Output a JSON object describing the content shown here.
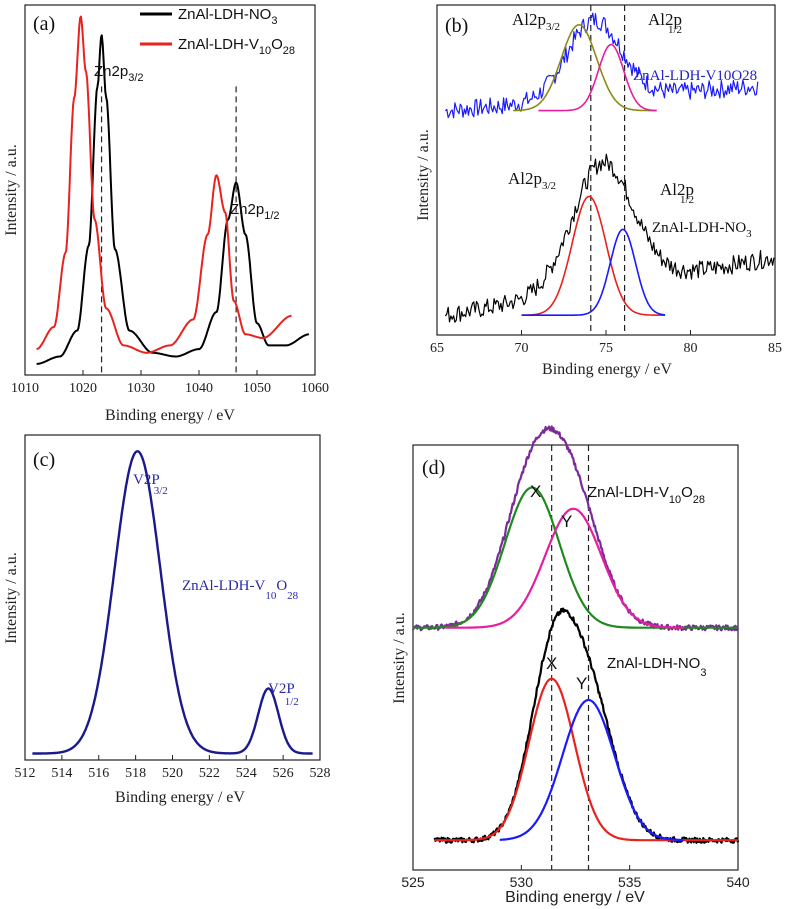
{
  "chart_data": [
    {
      "id": "a",
      "type": "line",
      "panel_label": "(a)",
      "xlabel": "Binding energy / eV",
      "ylabel": "Intensity / a.u.",
      "xlim": [
        1010,
        1060
      ],
      "ylim": [
        0,
        1
      ],
      "xticks": [
        1010,
        1020,
        1030,
        1040,
        1050,
        1060
      ],
      "legend": [
        {
          "name": "ZnAl-LDH-NO3",
          "main": "ZnAl-LDH-NO",
          "sub": "3",
          "color": "#000000"
        },
        {
          "name": "ZnAl-LDH-V10O28",
          "p1": "ZnAl-LDH-V",
          "s1": "10",
          "p2": "O",
          "s2": "28",
          "color": "#e8231f"
        }
      ],
      "peaks": [
        {
          "label_main": "Zn2p",
          "label_sub": "3/2",
          "x": 1023.2
        },
        {
          "label_main": "Zn2p",
          "label_sub": "1/2",
          "x": 1046.4
        }
      ],
      "series": [
        {
          "name": "ZnAl-LDH-NO3",
          "color": "#000000",
          "x": [
            1012,
            1016,
            1019,
            1021,
            1022.5,
            1023.2,
            1024,
            1025.5,
            1028,
            1032,
            1036,
            1040,
            1043,
            1045,
            1046.4,
            1048,
            1050,
            1052,
            1055,
            1059
          ],
          "y": [
            0.03,
            0.05,
            0.12,
            0.35,
            0.78,
            0.92,
            0.75,
            0.34,
            0.12,
            0.06,
            0.05,
            0.07,
            0.17,
            0.42,
            0.52,
            0.38,
            0.14,
            0.08,
            0.08,
            0.11
          ]
        },
        {
          "name": "ZnAl-LDH-V10O28",
          "color": "#e8231f",
          "x": [
            1012,
            1015,
            1017,
            1018.5,
            1019.6,
            1020.5,
            1022,
            1024,
            1027,
            1031,
            1035,
            1039,
            1041.5,
            1043,
            1044.5,
            1046,
            1048,
            1051,
            1056
          ],
          "y": [
            0.07,
            0.13,
            0.33,
            0.75,
            0.97,
            0.82,
            0.42,
            0.18,
            0.08,
            0.06,
            0.08,
            0.15,
            0.38,
            0.54,
            0.44,
            0.2,
            0.11,
            0.1,
            0.16
          ]
        }
      ]
    },
    {
      "id": "b",
      "type": "line",
      "panel_label": "(b)",
      "xlabel": "Binding energy / eV",
      "ylabel": "Intensity / a.u.",
      "xlim": [
        65,
        85
      ],
      "ylim": [
        0,
        1
      ],
      "xticks": [
        65,
        70,
        75,
        80,
        85
      ],
      "dashed_x": [
        74.1,
        76.1
      ],
      "labels": [
        {
          "main": "Al2p",
          "sub": "3/2"
        },
        {
          "main": "Al2p",
          "sub": "1/2"
        },
        {
          "main": "Al2p",
          "sub": "3/2"
        },
        {
          "main": "Al2p",
          "sub": "1/2"
        }
      ],
      "sample_labels": [
        {
          "text": "ZnAl-LDH-V10O28",
          "color": "#2222cc"
        },
        {
          "main": "ZnAl-LDH-NO",
          "sub": "3"
        }
      ],
      "series": [
        {
          "name": "V10O28 raw",
          "color": "#1a1aff",
          "x0": 65.5,
          "x1": 84,
          "base": 0.68,
          "peak_center": 74.3,
          "peak_amp": 0.24,
          "peak_width": 1.6,
          "noise": 0.028,
          "slope": 0.004
        },
        {
          "name": "V10O28 fit Al2p3/2",
          "color": "#8b8b1a",
          "x0": 69.5,
          "x1": 78,
          "base": 0.68,
          "center": 73.4,
          "amp": 0.26,
          "width": 1.05
        },
        {
          "name": "V10O28 fit Al2p1/2",
          "color": "#e61ea0",
          "x0": 71,
          "x1": 78,
          "base": 0.68,
          "center": 75.3,
          "amp": 0.2,
          "width": 0.75
        },
        {
          "name": "NO3 raw",
          "color": "#000000",
          "x0": 65.5,
          "x1": 85,
          "base": 0.06,
          "peak_center": 74.8,
          "peak_amp": 0.38,
          "peak_width": 1.8,
          "noise": 0.028,
          "slope": 0.009
        },
        {
          "name": "NO3 fit Al2p3/2",
          "color": "#e8231f",
          "x0": 70,
          "x1": 78.5,
          "base": 0.06,
          "center": 74.0,
          "amp": 0.36,
          "width": 1.0
        },
        {
          "name": "NO3 fit Al2p1/2",
          "color": "#1a1aff",
          "x0": 70,
          "x1": 78.5,
          "base": 0.06,
          "center": 76.0,
          "amp": 0.26,
          "width": 0.75
        }
      ]
    },
    {
      "id": "c",
      "type": "line",
      "panel_label": "(c)",
      "xlabel": "Binding energy / eV",
      "ylabel": "Intensity / a.u.",
      "xlim": [
        512,
        528
      ],
      "ylim": [
        0,
        1
      ],
      "xticks": [
        512,
        514,
        516,
        518,
        520,
        522,
        524,
        526,
        528
      ],
      "sample_label": {
        "p1": "ZnAl-LDH-V",
        "s1": "10",
        "p2": "O",
        "s2": "28"
      },
      "peaks": [
        {
          "label_main": "V2P",
          "label_sub": "3/2",
          "x": 518.1,
          "amp": 0.93,
          "width": 1.25
        },
        {
          "label_main": "V2P",
          "label_sub": "1/2",
          "x": 525.2,
          "amp": 0.2,
          "width": 0.55
        }
      ],
      "series": [
        {
          "name": "ZnAl-LDH-V10O28",
          "color": "#1a1a8c"
        }
      ]
    },
    {
      "id": "d",
      "type": "line",
      "panel_label": "(d)",
      "xlabel": "Binding energy / eV",
      "ylabel": "Intensity / a.u.",
      "xlim": [
        525,
        540
      ],
      "ylim": [
        0,
        1
      ],
      "xticks": [
        525,
        530,
        535,
        540
      ],
      "dashed_x": [
        531.4,
        533.1
      ],
      "peak_letters": [
        "X",
        "Y",
        "X",
        "Y"
      ],
      "sample_labels": [
        {
          "p1": "ZnAl-LDH-V",
          "s1": "10",
          "p2": "O",
          "s2": "28"
        },
        {
          "main": "ZnAl-LDH-NO",
          "sub": "3"
        }
      ],
      "series": [
        {
          "name": "V10O28 raw",
          "color": "#7a2a9a",
          "x0": 525,
          "x1": 540,
          "base": 0.57,
          "components": [
            [
              530.5,
              0.33,
              1.3
            ],
            [
              532.4,
              0.28,
              1.3
            ]
          ],
          "noise": 0.006
        },
        {
          "name": "V10O28 fit X",
          "color": "#1e8a1e",
          "x0": 525,
          "x1": 540,
          "base": 0.57,
          "components": [
            [
              530.5,
              0.33,
              1.25
            ]
          ]
        },
        {
          "name": "V10O28 fit Y",
          "color": "#e61ea0",
          "x0": 526.5,
          "x1": 537.5,
          "base": 0.57,
          "components": [
            [
              532.4,
              0.28,
              1.3
            ]
          ]
        },
        {
          "name": "NO3 raw",
          "color": "#000000",
          "x0": 526,
          "x1": 540,
          "base": 0.07,
          "components": [
            [
              531.4,
              0.38,
              1.05
            ],
            [
              533.1,
              0.33,
              1.2
            ]
          ],
          "noise": 0.006
        },
        {
          "name": "NO3 fit X",
          "color": "#e8231f",
          "x0": 526,
          "x1": 540,
          "base": 0.07,
          "components": [
            [
              531.4,
              0.38,
              1.05
            ]
          ]
        },
        {
          "name": "NO3 fit Y",
          "color": "#1a1aff",
          "x0": 529,
          "x1": 537.5,
          "base": 0.07,
          "components": [
            [
              533.1,
              0.33,
              1.2
            ]
          ]
        }
      ]
    }
  ]
}
